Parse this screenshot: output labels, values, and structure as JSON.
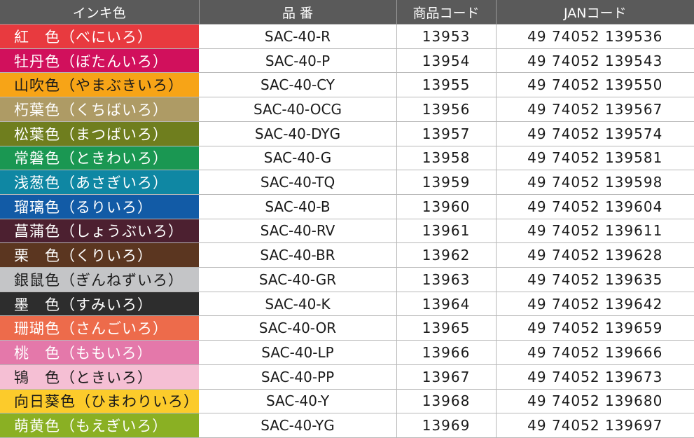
{
  "header": {
    "ink_color": "インキ色",
    "product_number": "品 番",
    "product_code": "商品コード",
    "jan_code": "JANコード"
  },
  "rows": [
    {
      "name": "紅　色（べにいろ）",
      "color": "#e83a3f",
      "text_color": "#ffffff",
      "part": "SAC-40-R",
      "code": "13953",
      "jan": "49 74052 139536"
    },
    {
      "name": "牡丹色（ぼたんいろ）",
      "color": "#d1105c",
      "text_color": "#ffffff",
      "part": "SAC-40-P",
      "code": "13954",
      "jan": "49 74052 139543"
    },
    {
      "name": "山吹色（やまぶきいろ）",
      "color": "#f7a417",
      "text_color": "#1a1a1a",
      "part": "SAC-40-CY",
      "code": "13955",
      "jan": "49 74052 139550"
    },
    {
      "name": "朽葉色（くちばいろ）",
      "color": "#ae9b65",
      "text_color": "#ffffff",
      "part": "SAC-40-OCG",
      "code": "13956",
      "jan": "49 74052 139567"
    },
    {
      "name": "松葉色（まつばいろ）",
      "color": "#6f7e1e",
      "text_color": "#ffffff",
      "part": "SAC-40-DYG",
      "code": "13957",
      "jan": "49 74052 139574"
    },
    {
      "name": "常磐色（ときわいろ）",
      "color": "#1a9752",
      "text_color": "#ffffff",
      "part": "SAC-40-G",
      "code": "13958",
      "jan": "49 74052 139581"
    },
    {
      "name": "浅葱色（あさぎいろ）",
      "color": "#0f87a3",
      "text_color": "#ffffff",
      "part": "SAC-40-TQ",
      "code": "13959",
      "jan": "49 74052 139598"
    },
    {
      "name": "瑠璃色（るりいろ）",
      "color": "#125ba6",
      "text_color": "#ffffff",
      "part": "SAC-40-B",
      "code": "13960",
      "jan": "49 74052 139604"
    },
    {
      "name": "菖蒲色（しょうぶいろ）",
      "color": "#4c2030",
      "text_color": "#ffffff",
      "part": "SAC-40-RV",
      "code": "13961",
      "jan": "49 74052 139611"
    },
    {
      "name": "栗　色（くりいろ）",
      "color": "#5b3620",
      "text_color": "#ffffff",
      "part": "SAC-40-BR",
      "code": "13962",
      "jan": "49 74052 139628"
    },
    {
      "name": "銀鼠色（ぎんねずいろ）",
      "color": "#c4c5c7",
      "text_color": "#1a1a1a",
      "part": "SAC-40-GR",
      "code": "13963",
      "jan": "49 74052 139635"
    },
    {
      "name": "墨　色（すみいろ）",
      "color": "#2d2d2d",
      "text_color": "#ffffff",
      "part": "SAC-40-K",
      "code": "13964",
      "jan": "49 74052 139642"
    },
    {
      "name": "珊瑚色（さんごいろ）",
      "color": "#ed6b4b",
      "text_color": "#ffffff",
      "part": "SAC-40-OR",
      "code": "13965",
      "jan": "49 74052 139659"
    },
    {
      "name": "桃　色（ももいろ）",
      "color": "#e478aa",
      "text_color": "#ffffff",
      "part": "SAC-40-LP",
      "code": "13966",
      "jan": "49 74052 139666"
    },
    {
      "name": "鴇　色（ときいろ）",
      "color": "#f5bfd4",
      "text_color": "#1a1a1a",
      "part": "SAC-40-PP",
      "code": "13967",
      "jan": "49 74052 139673"
    },
    {
      "name": "向日葵色（ひまわりいろ）",
      "color": "#fccb2b",
      "text_color": "#1a1a1a",
      "part": "SAC-40-Y",
      "code": "13968",
      "jan": "49 74052 139680"
    },
    {
      "name": "萌黄色（もえぎいろ）",
      "color": "#8ab023",
      "text_color": "#ffffff",
      "part": "SAC-40-YG",
      "code": "13969",
      "jan": "49 74052 139697"
    }
  ]
}
